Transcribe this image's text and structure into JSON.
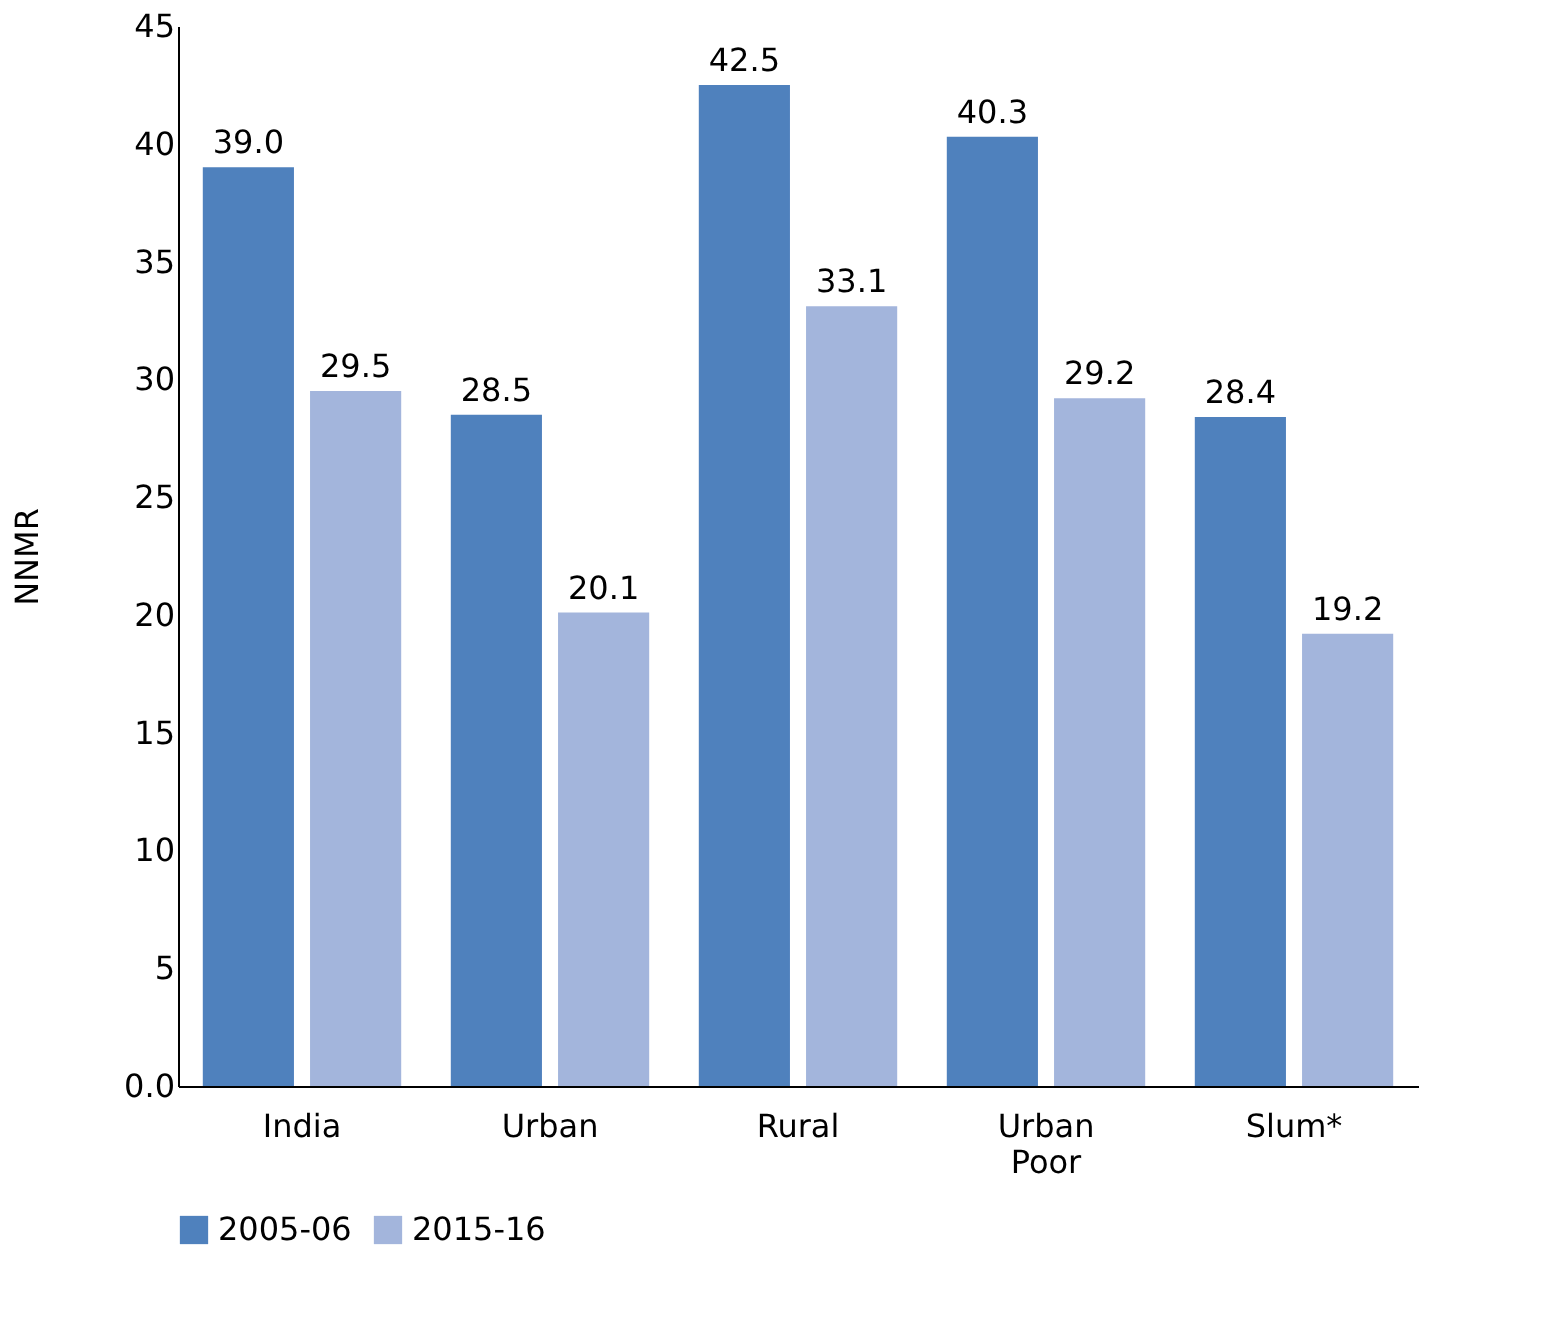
{
  "chart_data": {
    "type": "bar",
    "ylabel": "NNMR",
    "categories": [
      "India",
      "Urban",
      "Rural",
      "Urban Poor",
      "Slum*"
    ],
    "series": [
      {
        "name": "2005-06",
        "color": "#4f81bd",
        "values": [
          39.0,
          28.5,
          42.5,
          40.3,
          28.4
        ],
        "value_labels": [
          "39.0",
          "28.5",
          "42.5",
          "40.3",
          "28.4"
        ]
      },
      {
        "name": "2015-16",
        "color": "#a3b5dc",
        "values": [
          29.5,
          20.1,
          33.1,
          29.2,
          19.2
        ],
        "value_labels": [
          "29.5",
          "20.1",
          "33.1",
          "29.2",
          "19.2"
        ]
      }
    ],
    "ylim": [
      0,
      45
    ],
    "yticks": [
      {
        "value": 0,
        "label": "0.0"
      },
      5,
      10,
      15,
      20,
      25,
      30,
      35,
      40,
      45
    ],
    "grid": false,
    "legend": "bottom"
  }
}
